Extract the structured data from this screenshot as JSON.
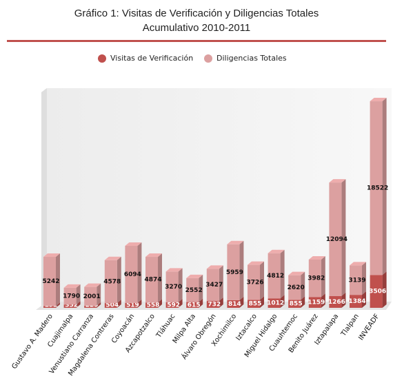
{
  "chart_data": {
    "type": "stacked-bar-3d",
    "title": "Gráfico 1: Visitas de Verificación y Diligencias Totales",
    "subtitle": "Acumulativo 2010-2011",
    "categories": [
      "Gustavo A. Madero",
      "Cuajimalpa",
      "Venustiano Carranza",
      "Magdalena Contreras",
      "Coyoacán",
      "Azcapotzalco",
      "Tláhuac",
      "Milpa Alta",
      "Álvaro Obregón",
      "Xochimilco",
      "Iztacalco",
      "Miguel Hidalgo",
      "Cuauhtemoc",
      "Benito Juárez",
      "Iztapalapa",
      "Tlalpan",
      "INVEADF"
    ],
    "series": [
      {
        "name": "Visitas de Verificación",
        "color": "#c0504d",
        "values": [
          192,
          352,
          229,
          504,
          519,
          558,
          592,
          615,
          732,
          814,
          855,
          1012,
          855,
          1159,
          1266,
          1384,
          3506
        ]
      },
      {
        "name": "Diligencias Totales",
        "color": "#dca0a0",
        "values": [
          5242,
          1790,
          2001,
          4578,
          6094,
          4874,
          3270,
          2552,
          3427,
          5959,
          3726,
          4812,
          2620,
          3982,
          12094,
          3139,
          18522
        ]
      }
    ],
    "ylim": [
      0,
      23500
    ],
    "legend": "top"
  }
}
